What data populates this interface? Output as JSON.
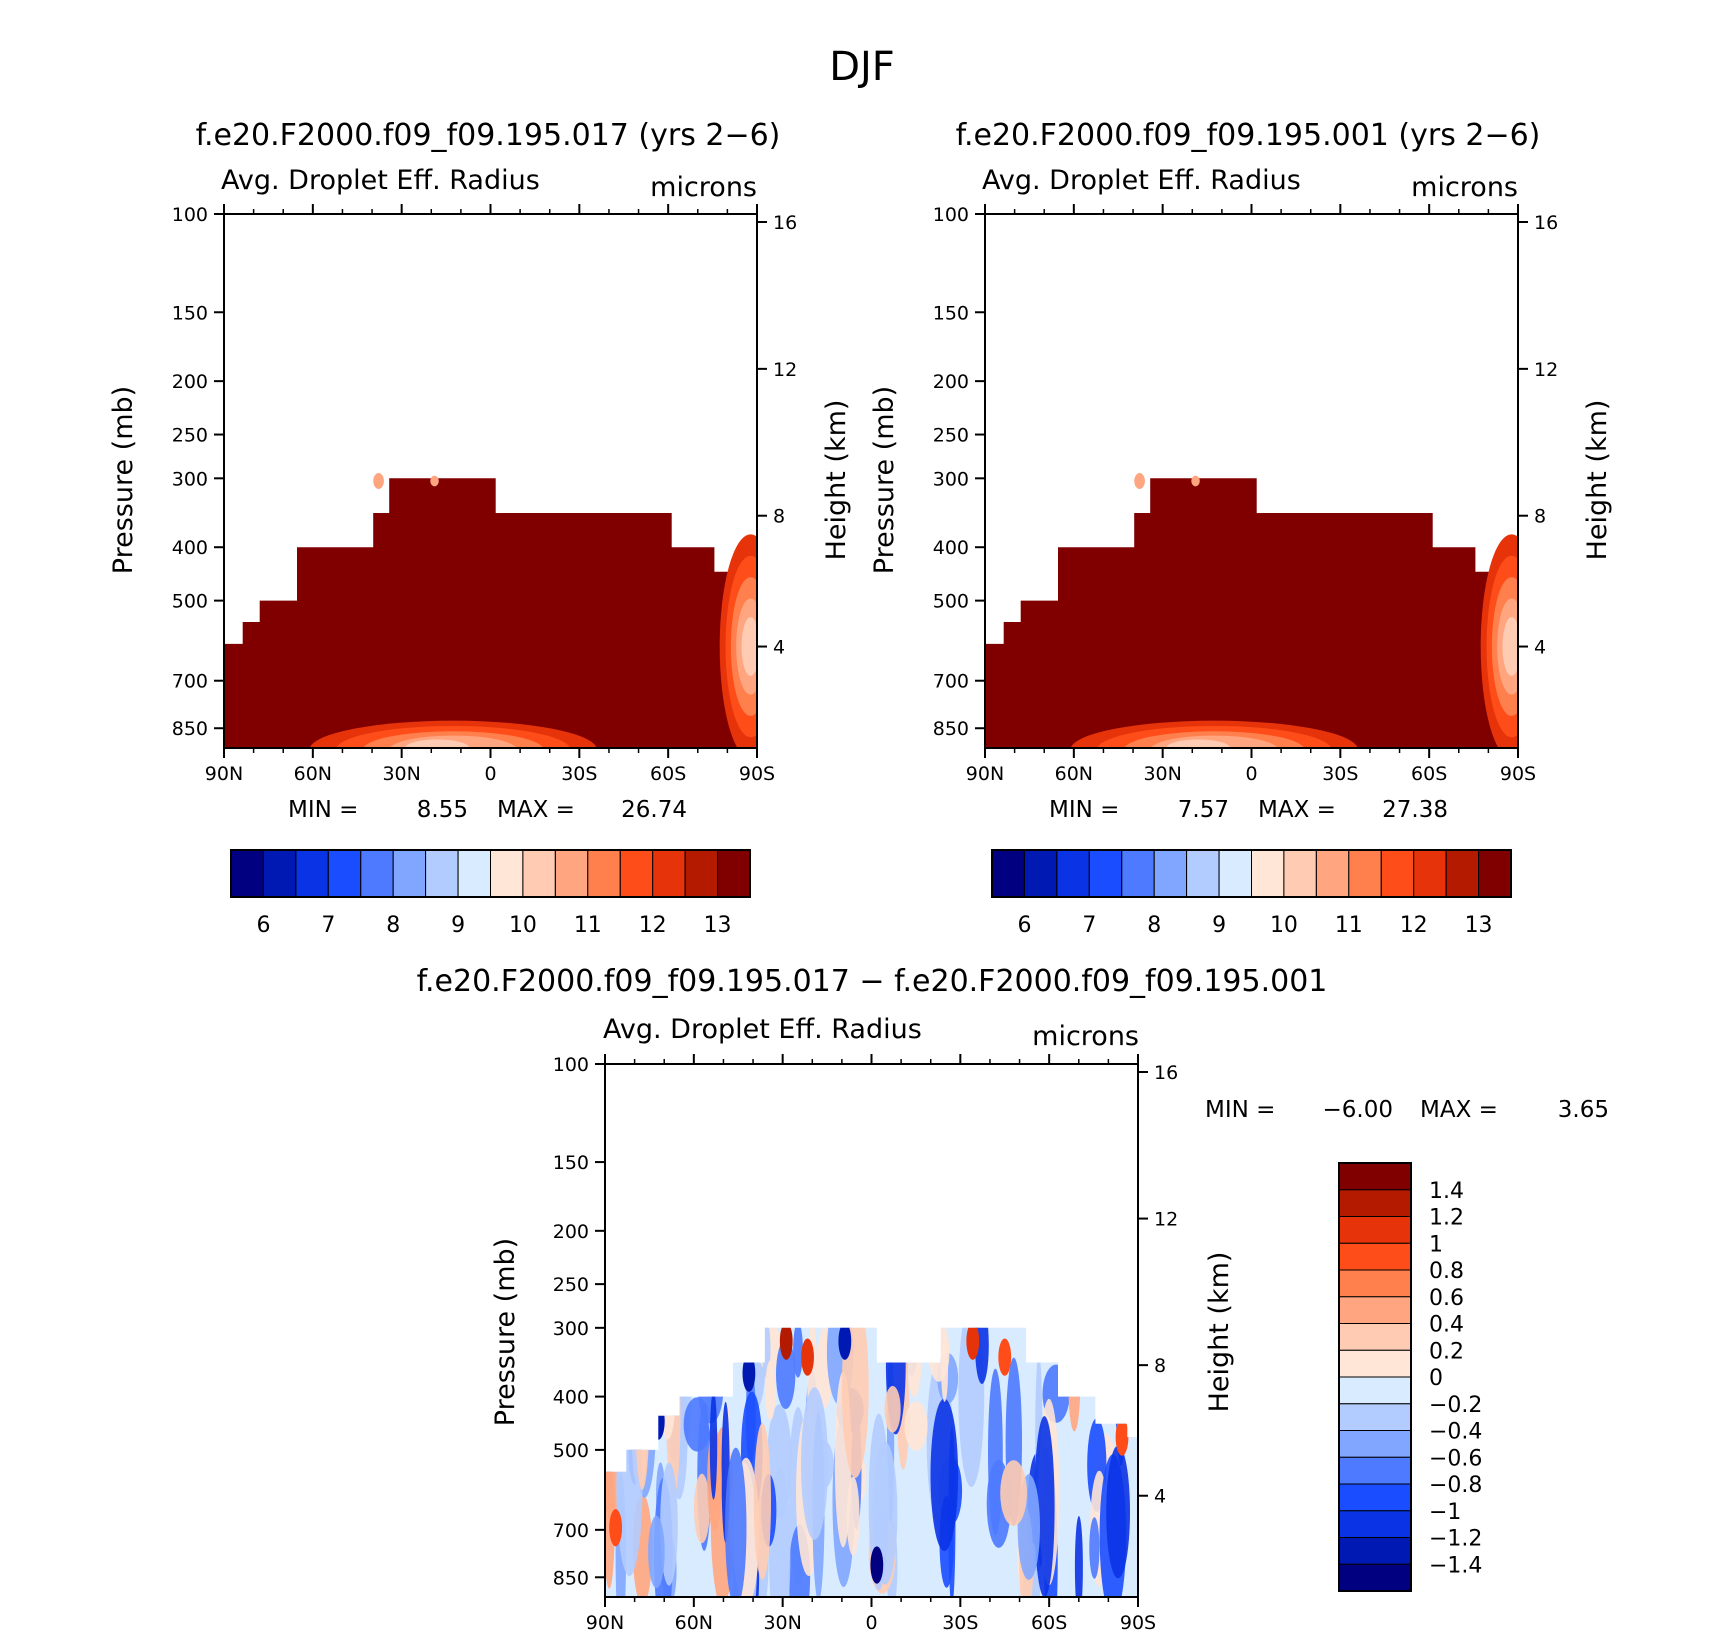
{
  "figure": {
    "title": "DJF"
  },
  "colors": {
    "abs": [
      "#000080",
      "#0019b3",
      "#0a33e6",
      "#1a4dff",
      "#4d7aff",
      "#80a6ff",
      "#b3ccff",
      "#d9ebff",
      "#ffe6d6",
      "#ffccb3",
      "#ffa680",
      "#ff804d",
      "#ff4d1a",
      "#e6330a",
      "#b31a00",
      "#800000"
    ],
    "diff": [
      "#800000",
      "#b31a00",
      "#e6330a",
      "#ff4d1a",
      "#ff804d",
      "#ffa680",
      "#ffccb3",
      "#ffe6d6",
      "#d9ebff",
      "#b3ccff",
      "#80a6ff",
      "#4d7aff",
      "#1a4dff",
      "#0a33e6",
      "#0019b3",
      "#000080"
    ]
  },
  "chart_data": [
    {
      "type": "heatmap",
      "title": "f.e20.F2000.f09_f09.195.017 (yrs 2−6)",
      "subtitle_left": "Avg. Droplet Eff. Radius",
      "subtitle_right": "microns",
      "ylabel": "Pressure (mb)",
      "ylabel_right": "Height (km)",
      "x_ticks": [
        "90N",
        "60N",
        "30N",
        "0",
        "30S",
        "60S",
        "90S"
      ],
      "y_ticks": [
        "100",
        "150",
        "200",
        "250",
        "300",
        "400",
        "500",
        "700",
        "850"
      ],
      "y_ticks_right": [
        "16",
        "12",
        "8",
        "4"
      ],
      "min_label": "MIN =",
      "min_value": "8.55",
      "max_label": "MAX =",
      "max_value": "26.74",
      "colorbar_labels": [
        "6",
        "7",
        "8",
        "9",
        "10",
        "11",
        "12",
        "13"
      ]
    },
    {
      "type": "heatmap",
      "title": "f.e20.F2000.f09_f09.195.001 (yrs 2−6)",
      "subtitle_left": "Avg. Droplet Eff. Radius",
      "subtitle_right": "microns",
      "ylabel": "Pressure (mb)",
      "ylabel_right": "Height (km)",
      "x_ticks": [
        "90N",
        "60N",
        "30N",
        "0",
        "30S",
        "60S",
        "90S"
      ],
      "y_ticks": [
        "100",
        "150",
        "200",
        "250",
        "300",
        "400",
        "500",
        "700",
        "850"
      ],
      "y_ticks_right": [
        "16",
        "12",
        "8",
        "4"
      ],
      "min_label": "MIN =",
      "min_value": "7.57",
      "max_label": "MAX =",
      "max_value": "27.38",
      "colorbar_labels": [
        "6",
        "7",
        "8",
        "9",
        "10",
        "11",
        "12",
        "13"
      ]
    },
    {
      "type": "heatmap",
      "title": "f.e20.F2000.f09_f09.195.017 − f.e20.F2000.f09_f09.195.001",
      "subtitle_left": "Avg. Droplet Eff. Radius",
      "subtitle_right": "microns",
      "ylabel": "Pressure (mb)",
      "ylabel_right": "Height (km)",
      "x_ticks": [
        "90N",
        "60N",
        "30N",
        "0",
        "30S",
        "60S",
        "90S"
      ],
      "y_ticks": [
        "100",
        "150",
        "200",
        "250",
        "300",
        "400",
        "500",
        "700",
        "850"
      ],
      "y_ticks_right": [
        "16",
        "12",
        "8",
        "4"
      ],
      "min_label": "MIN =",
      "min_value": "−6.00",
      "max_label": "MAX =",
      "max_value": "3.65",
      "colorbar_labels": [
        "1.4",
        "1.2",
        "1",
        "0.8",
        "0.6",
        "0.4",
        "0.2",
        "0",
        "−0.2",
        "−0.4",
        "−0.6",
        "−0.8",
        "−1",
        "−1.2",
        "−1.4"
      ]
    }
  ]
}
